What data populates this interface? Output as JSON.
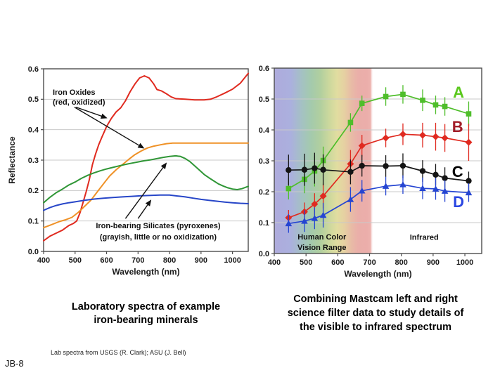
{
  "slide": {
    "jb_label": "JB-8",
    "credit": "Lab spectra from USGS (R. Clark); ASU (J. Bell)",
    "captions": {
      "left": "Laboratory spectra of example\niron-bearing minerals",
      "right": "Combining Mastcam left and right\nscience filter data to study details of\nthe visible to infrared spectrum"
    }
  },
  "chart_data": [
    {
      "id": "lab-spectra",
      "type": "line",
      "title": "Laboratory spectra of example iron-bearing minerals",
      "xlabel": "Wavelength (nm)",
      "ylabel": "Reflectance",
      "xlim": [
        400,
        1050
      ],
      "ylim": [
        0,
        0.6
      ],
      "xticks": [
        400,
        500,
        600,
        700,
        800,
        900,
        1000
      ],
      "xtick_labels": [
        "400",
        "500",
        "600",
        "700",
        "800",
        "900",
        "1000"
      ],
      "yticks": [
        0,
        0.1,
        0.2,
        0.3,
        0.4,
        0.5,
        0.6
      ],
      "ytick_labels": [
        "0.0",
        "0.1",
        "0.2",
        "0.3",
        "0.4",
        "0.5",
        "0.6"
      ],
      "grid": "horizontal",
      "series": [
        {
          "name": "iron-oxide-red",
          "color": "#e02a1f",
          "x": [
            400,
            420,
            440,
            460,
            480,
            495,
            505,
            515,
            525,
            535,
            545,
            555,
            565,
            575,
            585,
            600,
            615,
            630,
            645,
            660,
            675,
            690,
            705,
            720,
            735,
            750,
            760,
            775,
            790,
            805,
            820,
            850,
            880,
            910,
            930,
            950,
            975,
            1000,
            1025,
            1050
          ],
          "y": [
            0.035,
            0.05,
            0.06,
            0.07,
            0.085,
            0.092,
            0.1,
            0.125,
            0.16,
            0.195,
            0.235,
            0.285,
            0.32,
            0.35,
            0.375,
            0.41,
            0.437,
            0.458,
            0.472,
            0.495,
            0.525,
            0.55,
            0.57,
            0.577,
            0.57,
            0.55,
            0.532,
            0.527,
            0.518,
            0.508,
            0.502,
            0.5,
            0.498,
            0.498,
            0.5,
            0.508,
            0.52,
            0.533,
            0.553,
            0.585
          ]
        },
        {
          "name": "iron-oxide-orange",
          "color": "#ef9126",
          "x": [
            400,
            425,
            450,
            470,
            490,
            510,
            530,
            550,
            570,
            590,
            610,
            630,
            650,
            670,
            690,
            710,
            730,
            750,
            770,
            790,
            810,
            850,
            900,
            950,
            1000,
            1050
          ],
          "y": [
            0.078,
            0.088,
            0.098,
            0.104,
            0.112,
            0.128,
            0.148,
            0.168,
            0.195,
            0.222,
            0.248,
            0.268,
            0.285,
            0.302,
            0.318,
            0.33,
            0.34,
            0.346,
            0.35,
            0.354,
            0.356,
            0.356,
            0.356,
            0.356,
            0.356,
            0.356
          ]
        },
        {
          "name": "pyroxene-green",
          "color": "#2f9636",
          "x": [
            400,
            420,
            440,
            460,
            480,
            500,
            520,
            540,
            560,
            580,
            600,
            620,
            640,
            660,
            680,
            700,
            720,
            740,
            760,
            780,
            800,
            820,
            835,
            850,
            865,
            880,
            895,
            910,
            925,
            940,
            955,
            970,
            985,
            1000,
            1015,
            1030,
            1050
          ],
          "y": [
            0.16,
            0.178,
            0.193,
            0.205,
            0.218,
            0.228,
            0.24,
            0.25,
            0.258,
            0.265,
            0.271,
            0.276,
            0.281,
            0.286,
            0.29,
            0.294,
            0.298,
            0.301,
            0.305,
            0.309,
            0.312,
            0.314,
            0.312,
            0.305,
            0.295,
            0.281,
            0.267,
            0.253,
            0.242,
            0.232,
            0.222,
            0.215,
            0.209,
            0.205,
            0.203,
            0.206,
            0.214
          ]
        },
        {
          "name": "pyroxene-blue",
          "color": "#2746c8",
          "x": [
            400,
            420,
            440,
            460,
            480,
            500,
            530,
            560,
            590,
            620,
            650,
            680,
            710,
            740,
            770,
            800,
            825,
            850,
            875,
            900,
            925,
            950,
            975,
            1000,
            1025,
            1050
          ],
          "y": [
            0.135,
            0.144,
            0.151,
            0.156,
            0.16,
            0.163,
            0.168,
            0.172,
            0.175,
            0.177,
            0.179,
            0.181,
            0.183,
            0.184,
            0.185,
            0.185,
            0.182,
            0.179,
            0.175,
            0.171,
            0.168,
            0.165,
            0.162,
            0.16,
            0.158,
            0.157
          ]
        }
      ],
      "annotations": [
        {
          "lines": [
            "Iron Oxides",
            "(red, oxidized)"
          ],
          "x": 429,
          "y": 0.515,
          "anchor": "start",
          "line_gap": 14,
          "size": 11
        },
        {
          "lines": [
            "Iron-bearing Silicates (pyroxenes)",
            "(grayish, little or no oxidization)"
          ],
          "x": 764,
          "y": 0.076,
          "anchor": "middle",
          "line_gap": 16,
          "size": 11
        }
      ],
      "arrows": [
        {
          "from": [
            503,
            0.474
          ],
          "to": [
            599,
            0.439
          ]
        },
        {
          "from": [
            498,
            0.474
          ],
          "to": [
            717,
            0.34
          ]
        },
        {
          "from": [
            660,
            0.108
          ],
          "to": [
            789,
            0.289
          ]
        },
        {
          "from": [
            700,
            0.108
          ],
          "to": [
            740,
            0.167
          ]
        }
      ]
    },
    {
      "id": "mastcam-filters",
      "type": "scatter",
      "title": "Combining Mastcam left and right science filter data to study details of the visible to infrared spectrum",
      "xlabel": "Wavelength (nm)",
      "ylabel": "",
      "xlim": [
        400,
        1053
      ],
      "ylim": [
        0,
        0.6
      ],
      "xticks": [
        400,
        500,
        600,
        700,
        800,
        900,
        1000
      ],
      "xtick_labels": [
        "400",
        "500",
        "600",
        "700",
        "800",
        "900",
        "1000"
      ],
      "yticks": [
        0,
        0.1,
        0.2,
        0.3,
        0.4,
        0.5,
        0.6
      ],
      "ytick_labels": [
        "0.0",
        "0.1",
        "0.2",
        "0.3",
        "0.4",
        "0.5",
        "0.6"
      ],
      "grid": "horizontal",
      "x": [
        445,
        495,
        527,
        554,
        640,
        676,
        751,
        805,
        867,
        908,
        937,
        1012
      ],
      "series": [
        {
          "name": "A",
          "marker": "square",
          "color": "#4fbe2b",
          "label_color": "#5bc81e",
          "values": [
            0.21,
            0.24,
            0.267,
            0.301,
            0.424,
            0.486,
            0.508,
            0.515,
            0.496,
            0.481,
            0.476,
            0.452
          ],
          "errors": [
            0.035,
            0.045,
            0.05,
            0.045,
            0.03,
            0.025,
            0.03,
            0.03,
            0.035,
            0.03,
            0.03,
            0.04
          ]
        },
        {
          "name": "B",
          "marker": "diamond",
          "color": "#e02a20",
          "label_color": "#a21c28",
          "values": [
            0.116,
            0.135,
            0.16,
            0.186,
            0.29,
            0.349,
            0.374,
            0.386,
            0.383,
            0.378,
            0.374,
            0.36
          ],
          "errors": [
            0.025,
            0.03,
            0.035,
            0.04,
            0.045,
            0.035,
            0.03,
            0.035,
            0.04,
            0.045,
            0.045,
            0.06
          ]
        },
        {
          "name": "C",
          "marker": "circle",
          "color": "#151515",
          "label_color": "#000000",
          "values": [
            0.27,
            0.271,
            0.276,
            0.271,
            0.264,
            0.284,
            0.283,
            0.284,
            0.267,
            0.255,
            0.244,
            0.235
          ],
          "errors": [
            0.05,
            0.052,
            0.05,
            0.05,
            0.04,
            0.035,
            0.035,
            0.04,
            0.035,
            0.035,
            0.035,
            0.03
          ]
        },
        {
          "name": "D",
          "marker": "triangle",
          "color": "#2545d2",
          "label_color": "#2a46e2",
          "values": [
            0.097,
            0.105,
            0.114,
            0.124,
            0.175,
            0.203,
            0.218,
            0.223,
            0.211,
            0.209,
            0.202,
            0.197
          ],
          "errors": [
            0.03,
            0.035,
            0.035,
            0.04,
            0.04,
            0.035,
            0.03,
            0.03,
            0.035,
            0.035,
            0.035,
            0.03
          ]
        }
      ],
      "series_labels": [
        {
          "name": "A",
          "x": 980,
          "y": 0.505
        },
        {
          "name": "B",
          "x": 977,
          "y": 0.393
        },
        {
          "name": "C",
          "x": 977,
          "y": 0.248
        },
        {
          "name": "D",
          "x": 980,
          "y": 0.15
        }
      ],
      "annotations": [
        {
          "lines": [
            "Human Color",
            "Vision Range"
          ],
          "x": 550,
          "y": 0.046,
          "anchor": "middle",
          "line_gap": 15,
          "size": 11
        },
        {
          "lines": [
            "Infrared"
          ],
          "x": 872,
          "y": 0.044,
          "anchor": "middle",
          "size": 11
        }
      ],
      "rainbow": {
        "from": 400,
        "to": 712,
        "stops": [
          {
            "wl": 400,
            "color": "#aeabdc"
          },
          {
            "wl": 452,
            "color": "#abb0de"
          },
          {
            "wl": 488,
            "color": "#a4c2c2"
          },
          {
            "wl": 515,
            "color": "#a4caad"
          },
          {
            "wl": 545,
            "color": "#b1cf9f"
          },
          {
            "wl": 573,
            "color": "#ccd89d"
          },
          {
            "wl": 598,
            "color": "#e1dda0"
          },
          {
            "wl": 622,
            "color": "#e6cfa2"
          },
          {
            "wl": 643,
            "color": "#e8bba6"
          },
          {
            "wl": 663,
            "color": "#eaafa9"
          },
          {
            "wl": 690,
            "color": "#ebadaa"
          },
          {
            "wl": 703,
            "color": "#ecb2ae"
          },
          {
            "wl": 712,
            "color": "#ffffff",
            "opacity": 0
          }
        ]
      }
    }
  ]
}
